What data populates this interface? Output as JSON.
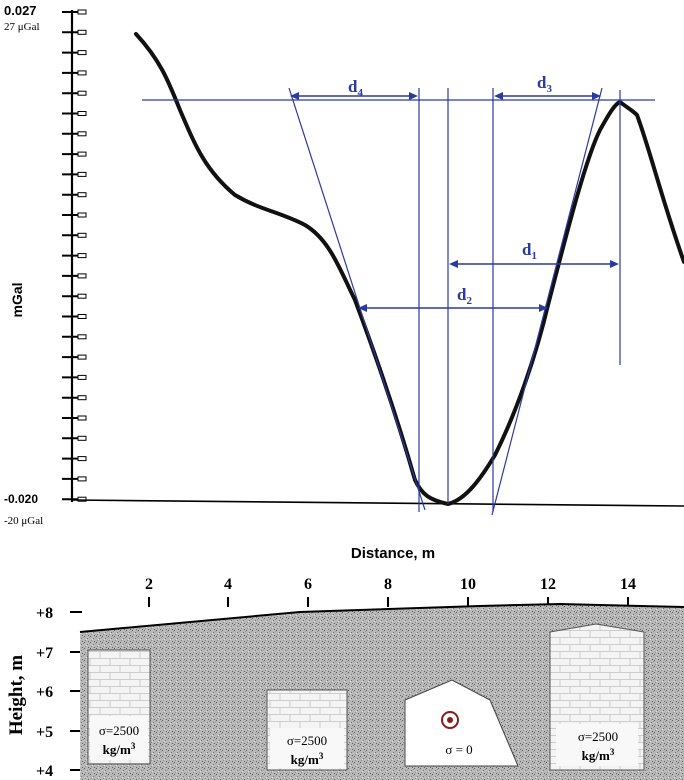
{
  "gravity_plot": {
    "y_top_value": "0.027",
    "y_top_sub": "27 μGal",
    "y_bottom_value": "-0.020",
    "y_bottom_sub": "-20 μGal",
    "y_unit": "mGal",
    "measurements": {
      "d1": {
        "base": "d",
        "sub": "1"
      },
      "d2": {
        "base": "d",
        "sub": "2"
      },
      "d3": {
        "base": "d",
        "sub": "3"
      },
      "d4": {
        "base": "d",
        "sub": "4"
      }
    },
    "line_color": "#2c3aa0",
    "curve_color": "#111111"
  },
  "section": {
    "x_title": "Distance, m",
    "y_title": "Height, m",
    "x_ticks": [
      "2",
      "4",
      "6",
      "8",
      "10",
      "12",
      "14"
    ],
    "y_ticks": [
      "+8",
      "+7",
      "+6",
      "+5",
      "+4"
    ],
    "blocks": [
      {
        "density_line": "σ=2500",
        "unit_line": "kg/m",
        "unit_sup": "3"
      },
      {
        "density_line": "σ=2500",
        "unit_line": "kg/m",
        "unit_sup": "3"
      },
      {
        "density_line": "σ = 0"
      },
      {
        "density_line": "σ=2500",
        "unit_line": "kg/m",
        "unit_sup": "3"
      }
    ],
    "target_icon": "bullseye-icon",
    "target_color": "#8b1a1a"
  }
}
